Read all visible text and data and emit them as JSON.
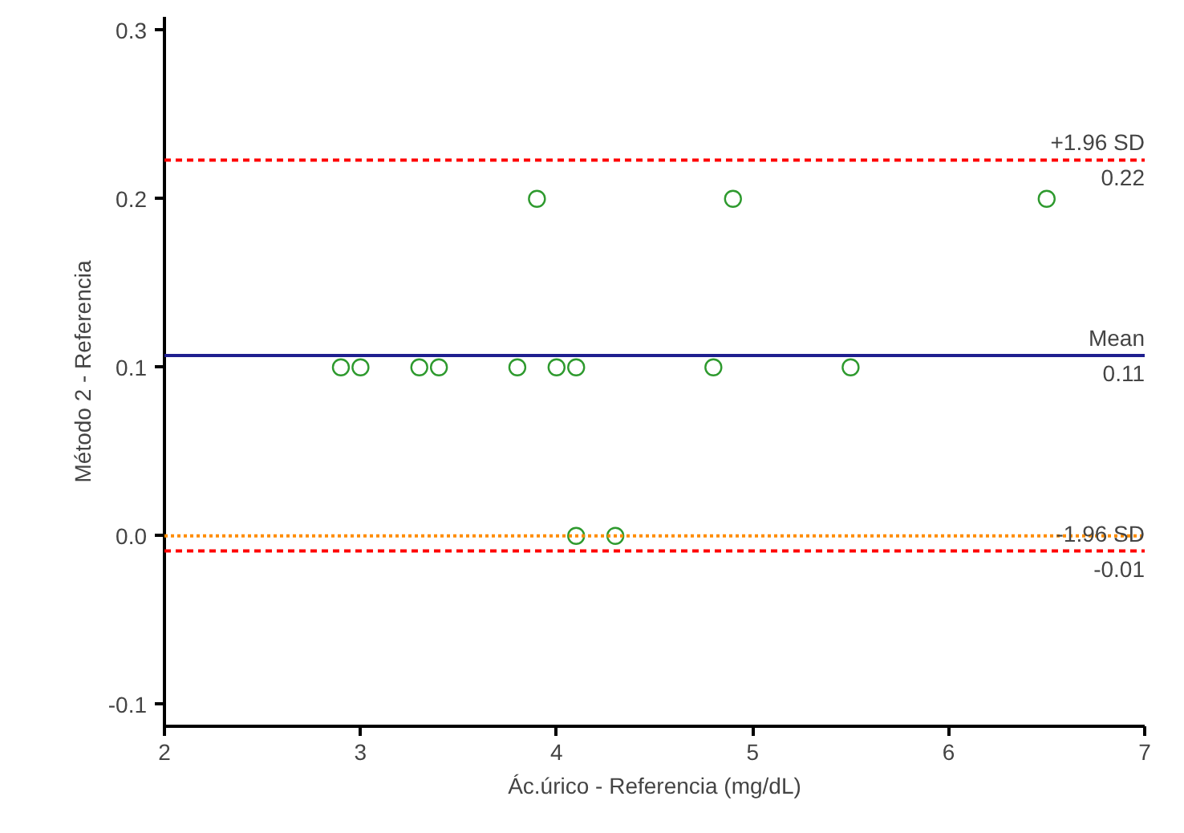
{
  "chart_data": {
    "type": "scatter",
    "xlabel": "Ác.úrico - Referencia (mg/dL)",
    "ylabel": "Método 2 - Referencia",
    "x": [
      2.9,
      3.0,
      3.3,
      3.4,
      3.8,
      4.0,
      4.1,
      4.8,
      5.5,
      3.9,
      4.9,
      6.5,
      4.1,
      4.3
    ],
    "series": [
      {
        "color": "#2e9a2e",
        "values": [
          0.1,
          0.1,
          0.1,
          0.1,
          0.1,
          0.1,
          0.1,
          0.1,
          0.1,
          0.2,
          0.2,
          0.2,
          0.0,
          0.0
        ]
      }
    ],
    "marker": "circle",
    "grid": false,
    "xlim": [
      2,
      7
    ],
    "ylim": [
      -0.113,
      0.308
    ],
    "xticks": [
      2,
      3,
      4,
      5,
      6,
      7
    ],
    "yticks": [
      {
        "value": -0.1,
        "label": "-0.1"
      },
      {
        "value": 0,
        "label": "0.0"
      },
      {
        "value": 0.1,
        "label": "0.1"
      },
      {
        "value": 0.2,
        "label": "0.2"
      },
      {
        "value": 0.3,
        "label": "0.3"
      }
    ],
    "ref_lines": [
      {
        "axis": "y",
        "value": 0.223,
        "label": "+1.96 SD",
        "color": "#ff0000",
        "line_style": "dashed"
      },
      {
        "axis": "y",
        "value": 0.107,
        "label": "Mean",
        "color": "#1f1f8f",
        "line_style": "solid"
      },
      {
        "axis": "y",
        "value": 0,
        "label": null,
        "color": "#ff8c00",
        "line_style": "dotted"
      },
      {
        "axis": "y",
        "value": -0.009,
        "label": "-1.96 SD",
        "color": "#ff0000",
        "line_style": "dashed"
      }
    ],
    "annotations": [
      {
        "text": "0.22",
        "y": 0.223
      },
      {
        "text": "0.11",
        "y": 0.107
      },
      {
        "text": "-0.01",
        "y": -0.009
      }
    ]
  }
}
